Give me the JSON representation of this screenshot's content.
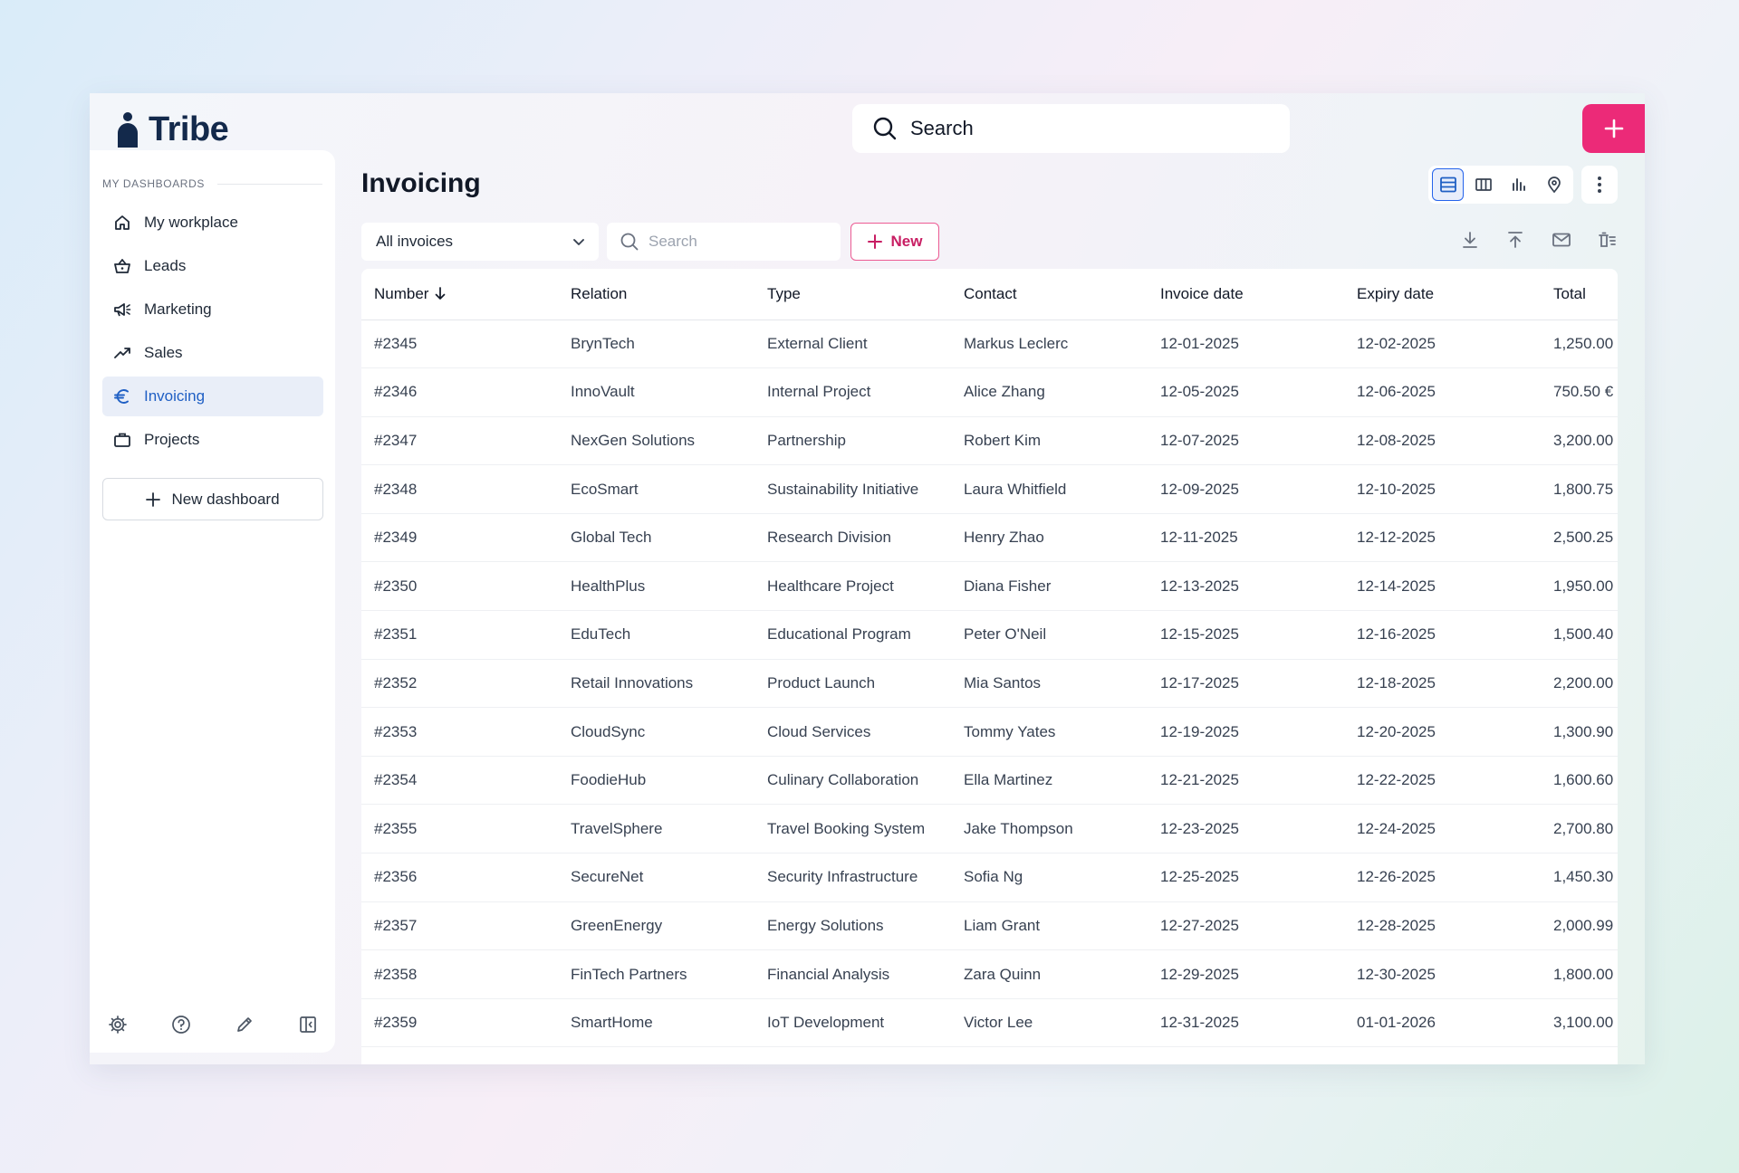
{
  "app": {
    "name": "Tribe"
  },
  "topbar": {
    "search_label": "Search"
  },
  "sidebar": {
    "section_label": "MY DASHBOARDS",
    "items": [
      {
        "label": "My workplace",
        "icon": "home-icon",
        "active": false
      },
      {
        "label": "Leads",
        "icon": "basket-icon",
        "active": false
      },
      {
        "label": "Marketing",
        "icon": "megaphone-icon",
        "active": false
      },
      {
        "label": "Sales",
        "icon": "trend-icon",
        "active": false
      },
      {
        "label": "Invoicing",
        "icon": "euro-icon",
        "active": true
      },
      {
        "label": "Projects",
        "icon": "briefcase-icon",
        "active": false
      }
    ],
    "new_dashboard_label": "New dashboard",
    "footer_icons": [
      "gear-icon",
      "help-icon",
      "pencil-icon",
      "collapse-sidebar-icon"
    ]
  },
  "main": {
    "title": "Invoicing",
    "filter_value": "All invoices",
    "search_placeholder": "Search",
    "new_label": "New",
    "accent": "#ec2a78",
    "active_view": "table",
    "columns": [
      "Number",
      "Relation",
      "Type",
      "Contact",
      "Invoice date",
      "Expiry date",
      "Total"
    ],
    "sorted_column": "Number",
    "rows": [
      [
        "#2345",
        "BrynTech",
        "External Client",
        "Markus Leclerc",
        "12-01-2025",
        "12-02-2025",
        "1,250.00"
      ],
      [
        "#2346",
        "InnoVault",
        "Internal Project",
        "Alice Zhang",
        "12-05-2025",
        "12-06-2025",
        "750.50 €"
      ],
      [
        "#2347",
        "NexGen Solutions",
        "Partnership",
        "Robert Kim",
        "12-07-2025",
        "12-08-2025",
        "3,200.00"
      ],
      [
        "#2348",
        "EcoSmart",
        "Sustainability Initiative",
        "Laura Whitfield",
        "12-09-2025",
        "12-10-2025",
        "1,800.75"
      ],
      [
        "#2349",
        "Global Tech",
        "Research Division",
        "Henry Zhao",
        "12-11-2025",
        "12-12-2025",
        "2,500.25"
      ],
      [
        "#2350",
        "HealthPlus",
        "Healthcare Project",
        "Diana Fisher",
        "12-13-2025",
        "12-14-2025",
        "1,950.00"
      ],
      [
        "#2351",
        "EduTech",
        "Educational Program",
        "Peter O'Neil",
        "12-15-2025",
        "12-16-2025",
        "1,500.40"
      ],
      [
        "#2352",
        "Retail Innovations",
        "Product Launch",
        "Mia Santos",
        "12-17-2025",
        "12-18-2025",
        "2,200.00"
      ],
      [
        "#2353",
        "CloudSync",
        "Cloud Services",
        "Tommy Yates",
        "12-19-2025",
        "12-20-2025",
        "1,300.90"
      ],
      [
        "#2354",
        "FoodieHub",
        "Culinary Collaboration",
        "Ella Martinez",
        "12-21-2025",
        "12-22-2025",
        "1,600.60"
      ],
      [
        "#2355",
        "TravelSphere",
        "Travel Booking System",
        "Jake Thompson",
        "12-23-2025",
        "12-24-2025",
        "2,700.80"
      ],
      [
        "#2356",
        "SecureNet",
        "Security Infrastructure",
        "Sofia Ng",
        "12-25-2025",
        "12-26-2025",
        "1,450.30"
      ],
      [
        "#2357",
        "GreenEnergy",
        "Energy Solutions",
        "Liam Grant",
        "12-27-2025",
        "12-28-2025",
        "2,000.99"
      ],
      [
        "#2358",
        "FinTech Partners",
        "Financial Analysis",
        "Zara Quinn",
        "12-29-2025",
        "12-30-2025",
        "1,800.00"
      ],
      [
        "#2359",
        "SmartHome",
        "IoT Development",
        "Victor Lee",
        "12-31-2025",
        "01-01-2026",
        "3,100.00"
      ]
    ]
  }
}
